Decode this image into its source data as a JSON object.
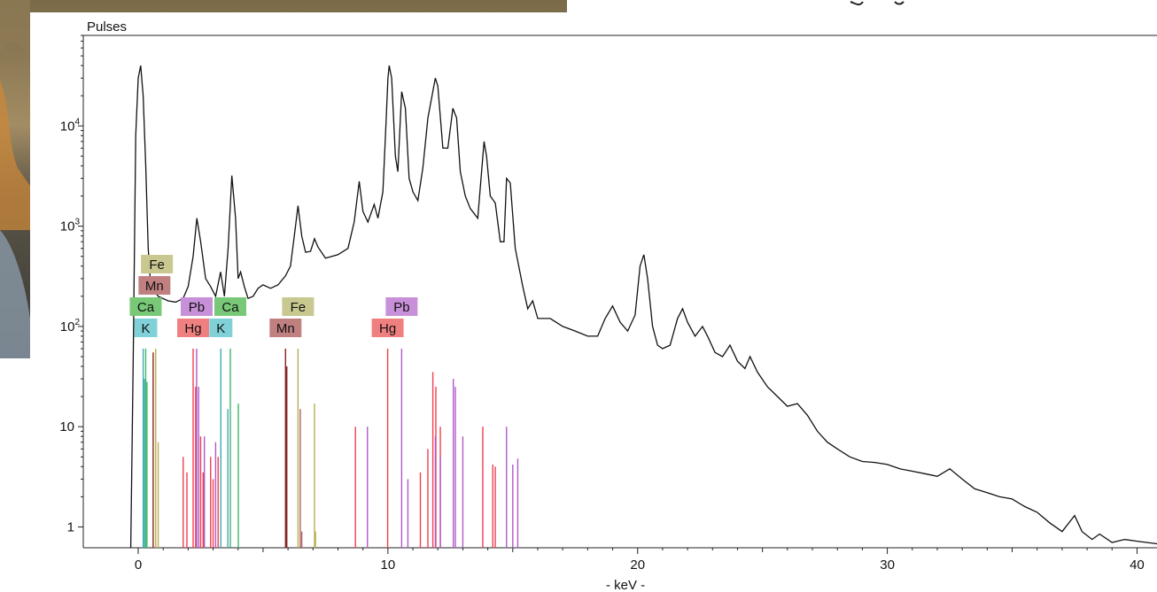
{
  "chart_data": {
    "type": "line",
    "ylabel": "Pulses",
    "xlabel": "- keV -",
    "xlim": [
      -2.2,
      40.8
    ],
    "y_scale": "log",
    "ylim": [
      0.62,
      80000
    ],
    "x_ticks": [
      0,
      10,
      20,
      30,
      40
    ],
    "y_ticks": [
      {
        "value": 1,
        "label": "1"
      },
      {
        "value": 10,
        "label": "10"
      },
      {
        "value": 100,
        "label": "10",
        "exp": "2"
      },
      {
        "value": 1000,
        "label": "10",
        "exp": "3"
      },
      {
        "value": 10000,
        "label": "10",
        "exp": "4"
      }
    ],
    "grid": false,
    "series": [
      {
        "color": "#111111",
        "points": [
          [
            -0.3,
            0.62
          ],
          [
            -0.2,
            50
          ],
          [
            -0.1,
            8000
          ],
          [
            0.0,
            30000
          ],
          [
            0.1,
            40000
          ],
          [
            0.2,
            20000
          ],
          [
            0.3,
            4000
          ],
          [
            0.4,
            600
          ],
          [
            0.5,
            250
          ],
          [
            0.8,
            200
          ],
          [
            1.2,
            180
          ],
          [
            1.5,
            175
          ],
          [
            1.8,
            190
          ],
          [
            2.0,
            250
          ],
          [
            2.2,
            500
          ],
          [
            2.35,
            1200
          ],
          [
            2.5,
            700
          ],
          [
            2.7,
            300
          ],
          [
            2.9,
            250
          ],
          [
            3.1,
            200
          ],
          [
            3.3,
            350
          ],
          [
            3.45,
            200
          ],
          [
            3.6,
            600
          ],
          [
            3.75,
            3200
          ],
          [
            3.9,
            1200
          ],
          [
            4.0,
            300
          ],
          [
            4.1,
            350
          ],
          [
            4.25,
            250
          ],
          [
            4.4,
            190
          ],
          [
            4.6,
            200
          ],
          [
            4.8,
            240
          ],
          [
            5.0,
            260
          ],
          [
            5.3,
            240
          ],
          [
            5.6,
            260
          ],
          [
            5.9,
            320
          ],
          [
            6.1,
            400
          ],
          [
            6.25,
            800
          ],
          [
            6.4,
            1600
          ],
          [
            6.55,
            800
          ],
          [
            6.7,
            550
          ],
          [
            6.9,
            560
          ],
          [
            7.06,
            750
          ],
          [
            7.2,
            620
          ],
          [
            7.5,
            480
          ],
          [
            8.0,
            520
          ],
          [
            8.4,
            600
          ],
          [
            8.65,
            1100
          ],
          [
            8.85,
            2800
          ],
          [
            9.0,
            1400
          ],
          [
            9.2,
            1100
          ],
          [
            9.45,
            1650
          ],
          [
            9.6,
            1200
          ],
          [
            9.8,
            2200
          ],
          [
            9.9,
            8000
          ],
          [
            10.0,
            30000
          ],
          [
            10.05,
            40000
          ],
          [
            10.15,
            30000
          ],
          [
            10.3,
            5000
          ],
          [
            10.4,
            3500
          ],
          [
            10.55,
            22000
          ],
          [
            10.7,
            15000
          ],
          [
            10.85,
            3000
          ],
          [
            11.0,
            2200
          ],
          [
            11.2,
            1800
          ],
          [
            11.4,
            3800
          ],
          [
            11.6,
            12000
          ],
          [
            11.9,
            30000
          ],
          [
            12.0,
            25000
          ],
          [
            12.2,
            6000
          ],
          [
            12.4,
            6000
          ],
          [
            12.6,
            15000
          ],
          [
            12.75,
            12000
          ],
          [
            12.9,
            3500
          ],
          [
            13.1,
            2000
          ],
          [
            13.3,
            1500
          ],
          [
            13.6,
            1200
          ],
          [
            13.85,
            7000
          ],
          [
            13.95,
            5000
          ],
          [
            14.1,
            2000
          ],
          [
            14.3,
            1700
          ],
          [
            14.5,
            700
          ],
          [
            14.65,
            700
          ],
          [
            14.75,
            3000
          ],
          [
            14.9,
            2700
          ],
          [
            15.1,
            600
          ],
          [
            15.4,
            250
          ],
          [
            15.6,
            150
          ],
          [
            15.8,
            180
          ],
          [
            16.0,
            120
          ],
          [
            16.5,
            120
          ],
          [
            17.0,
            100
          ],
          [
            17.5,
            90
          ],
          [
            18.0,
            80
          ],
          [
            18.4,
            80
          ],
          [
            18.7,
            120
          ],
          [
            19.0,
            160
          ],
          [
            19.3,
            110
          ],
          [
            19.6,
            90
          ],
          [
            19.9,
            130
          ],
          [
            20.1,
            400
          ],
          [
            20.25,
            520
          ],
          [
            20.4,
            300
          ],
          [
            20.6,
            100
          ],
          [
            20.8,
            65
          ],
          [
            21.0,
            60
          ],
          [
            21.3,
            65
          ],
          [
            21.6,
            120
          ],
          [
            21.8,
            150
          ],
          [
            22.0,
            110
          ],
          [
            22.3,
            80
          ],
          [
            22.6,
            100
          ],
          [
            22.8,
            80
          ],
          [
            23.1,
            55
          ],
          [
            23.4,
            50
          ],
          [
            23.7,
            65
          ],
          [
            24.0,
            45
          ],
          [
            24.3,
            38
          ],
          [
            24.5,
            50
          ],
          [
            24.8,
            35
          ],
          [
            25.2,
            25
          ],
          [
            25.6,
            20
          ],
          [
            26.0,
            16
          ],
          [
            26.4,
            17
          ],
          [
            26.8,
            13
          ],
          [
            27.2,
            9
          ],
          [
            27.6,
            7
          ],
          [
            28.0,
            6
          ],
          [
            28.5,
            5
          ],
          [
            29.0,
            4.5
          ],
          [
            29.5,
            4.4
          ],
          [
            30.0,
            4.2
          ],
          [
            30.5,
            3.8
          ],
          [
            31.0,
            3.6
          ],
          [
            31.5,
            3.4
          ],
          [
            32.0,
            3.2
          ],
          [
            32.5,
            3.8
          ],
          [
            33.0,
            3.0
          ],
          [
            33.5,
            2.4
          ],
          [
            34.0,
            2.2
          ],
          [
            34.5,
            2.0
          ],
          [
            35.0,
            1.9
          ],
          [
            35.5,
            1.6
          ],
          [
            36.0,
            1.4
          ],
          [
            36.5,
            1.1
          ],
          [
            37.0,
            0.9
          ],
          [
            37.5,
            1.3
          ],
          [
            37.8,
            0.9
          ],
          [
            38.2,
            0.75
          ],
          [
            38.5,
            0.85
          ],
          [
            39.0,
            0.7
          ],
          [
            39.5,
            0.75
          ],
          [
            40.0,
            0.72
          ],
          [
            40.8,
            0.68
          ]
        ]
      }
    ],
    "element_lines": [
      {
        "element": "K",
        "color": "#41a8b4",
        "lines": [
          [
            0.2,
            60
          ],
          [
            0.25,
            30
          ]
        ]
      },
      {
        "element": "Ca",
        "color": "#3cb86a",
        "lines": [
          [
            0.3,
            60
          ],
          [
            0.35,
            28
          ]
        ]
      },
      {
        "element": "Mn",
        "color": "#8b2020",
        "lines": [
          [
            0.6,
            55
          ],
          [
            5.9,
            60
          ],
          [
            5.95,
            40
          ]
        ]
      },
      {
        "element": "Fe",
        "color": "#b8b050",
        "lines": [
          [
            0.7,
            60
          ],
          [
            0.8,
            7
          ],
          [
            6.4,
            60
          ],
          [
            7.06,
            17
          ],
          [
            7.1,
            0.9
          ]
        ]
      },
      {
        "element": "K",
        "color": "#41a8b4",
        "lines": [
          [
            3.31,
            60
          ],
          [
            3.59,
            15
          ]
        ]
      },
      {
        "element": "Ca",
        "color": "#3cb86a",
        "lines": [
          [
            3.69,
            60
          ],
          [
            4.01,
            17
          ]
        ]
      },
      {
        "element": "Mn",
        "color": "#b06060",
        "lines": [
          [
            6.49,
            15
          ],
          [
            6.55,
            0.9
          ]
        ]
      },
      {
        "element": "Hg",
        "color": "#f04050",
        "lines": [
          [
            1.8,
            5
          ],
          [
            1.95,
            3.5
          ],
          [
            2.2,
            60
          ],
          [
            2.3,
            25
          ],
          [
            2.5,
            8
          ],
          [
            2.6,
            3.5
          ],
          [
            2.9,
            5
          ],
          [
            3.0,
            3
          ],
          [
            3.2,
            5
          ],
          [
            8.7,
            10
          ],
          [
            9.99,
            60
          ],
          [
            11.3,
            3.5
          ],
          [
            11.6,
            6
          ],
          [
            11.8,
            35
          ],
          [
            11.92,
            25
          ],
          [
            12.1,
            10
          ],
          [
            13.8,
            10
          ],
          [
            14.2,
            4.2
          ],
          [
            14.3,
            4
          ]
        ]
      },
      {
        "element": "Pb",
        "color": "#b05ac8",
        "lines": [
          [
            2.34,
            60
          ],
          [
            2.42,
            25
          ],
          [
            2.65,
            8
          ],
          [
            3.1,
            7
          ],
          [
            9.18,
            10
          ],
          [
            10.55,
            60
          ],
          [
            10.8,
            3
          ],
          [
            11.9,
            8
          ],
          [
            12.1,
            5
          ],
          [
            12.62,
            30
          ],
          [
            12.7,
            25
          ],
          [
            13.0,
            8
          ],
          [
            14.75,
            10
          ],
          [
            15.0,
            4.2
          ],
          [
            15.2,
            4.8
          ]
        ]
      }
    ],
    "annotations": [
      {
        "label": "Fe",
        "x": 0.75,
        "row": 3
      },
      {
        "label": "Mn",
        "x": 0.65,
        "row": 2
      },
      {
        "label": "Ca",
        "x": 0.3,
        "row": 1
      },
      {
        "label": "K",
        "x": 0.3,
        "row": 0
      },
      {
        "label": "Pb",
        "x": 2.34,
        "row": 1
      },
      {
        "label": "Hg",
        "x": 2.2,
        "row": 0
      },
      {
        "label": "Ca",
        "x": 3.69,
        "row": 1
      },
      {
        "label": "K",
        "x": 3.31,
        "row": 0
      },
      {
        "label": "Fe",
        "x": 6.4,
        "row": 1
      },
      {
        "label": "Mn",
        "x": 5.9,
        "row": 0
      },
      {
        "label": "Pb",
        "x": 10.55,
        "row": 1
      },
      {
        "label": "Hg",
        "x": 9.99,
        "row": 0
      }
    ],
    "tag_colors": {
      "Fe": "#c8c890",
      "Mn": "#c08080",
      "Ca": "#78c878",
      "K": "#80d0d8",
      "Pb": "#c890d8",
      "Hg": "#f08080"
    }
  },
  "background": {
    "photo_colors": [
      "#6d5c3e",
      "#a18a63",
      "#cf8a3c",
      "#3a3428",
      "#8a8e90"
    ]
  }
}
